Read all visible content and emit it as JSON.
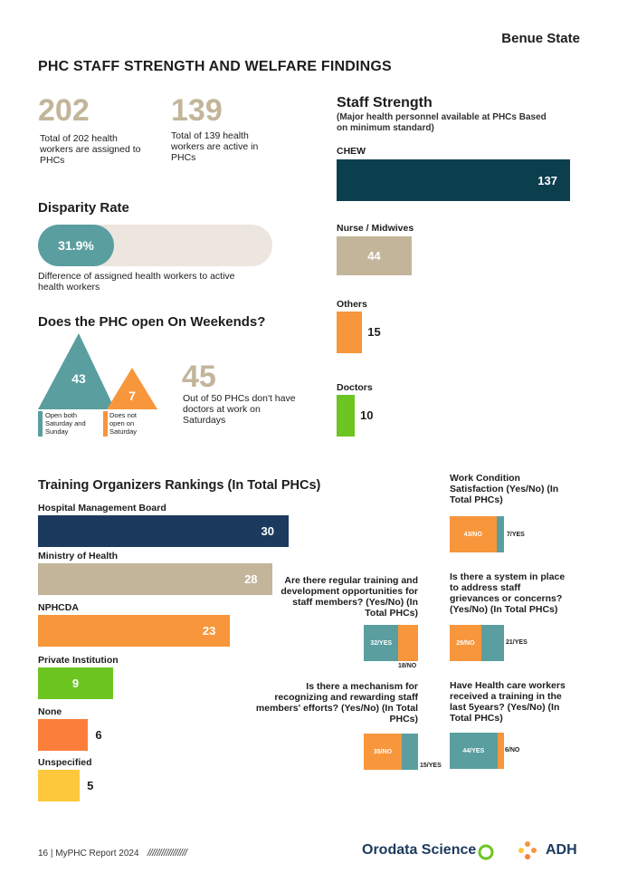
{
  "header": {
    "state": "Benue State",
    "title": "PHC STAFF STRENGTH AND WELFARE FINDINGS"
  },
  "stats": [
    {
      "value": "202",
      "text": "Total of 202 health workers are assigned to PHCs"
    },
    {
      "value": "139",
      "text": "Total of 139 health workers are active in PHCs"
    }
  ],
  "disparity": {
    "title": "Disparity Rate",
    "value": "31.9%",
    "fraction": 0.319,
    "caption": "Difference of assigned health workers to active health workers"
  },
  "weekends": {
    "title": "Does the PHC open On Weekends?",
    "open_value": "43",
    "open_label": "Open both Saturday and Sunday",
    "closed_value": "7",
    "closed_label": "Does not open on Saturday",
    "doctors_value": "45",
    "doctors_text": "Out of 50 PHCs don't have doctors at work on Saturdays"
  },
  "staff": {
    "title": "Staff Strength",
    "subtitle": "(Major health personnel available at PHCs Based on minimum standard)",
    "items": [
      {
        "label": "CHEW",
        "value": 137,
        "display": "137",
        "color": "#0c3f4e"
      },
      {
        "label": "Nurse / Midwives",
        "value": 44,
        "display": "44",
        "color": "#c2b59a"
      },
      {
        "label": "Others",
        "value": 15,
        "display": "15",
        "color": "#f7963b"
      },
      {
        "label": "Doctors",
        "value": 10,
        "display": "10",
        "color": "#6cc521"
      }
    ]
  },
  "training": {
    "title": "Training Organizers Rankings (In Total PHCs)",
    "items": [
      {
        "label": "Hospital Management Board",
        "value": 30,
        "display": "30",
        "color": "#1b3a5e"
      },
      {
        "label": "Ministry of Health",
        "value": 28,
        "display": "28",
        "color": "#c2b59a"
      },
      {
        "label": "NPHCDA",
        "value": 23,
        "display": "23",
        "color": "#f7963b"
      },
      {
        "label": "Private Institution",
        "value": 9,
        "display": "9",
        "color": "#6cc521"
      },
      {
        "label": "None",
        "value": 6,
        "display": "6",
        "color": "#fb7f3b"
      },
      {
        "label": "Unspecified",
        "value": 5,
        "display": "5",
        "color": "#fdc83c"
      }
    ]
  },
  "questions": {
    "q1": {
      "text": "Work Condition Satisfaction (Yes/No) (In Total PHCs)",
      "no": 43,
      "no_label": "43/NO",
      "yes": 7,
      "yes_label": "7/YES"
    },
    "q2": {
      "text": "Are there regular training and development opportunities for staff members? (Yes/No) (In Total PHCs)",
      "yes": 32,
      "yes_label": "32/YES",
      "no": 18,
      "no_label": "18/NO"
    },
    "q3": {
      "text": "Is there a system in place to address staff grievances or concerns? (Yes/No) (In Total PHCs)",
      "no": 29,
      "no_label": "29/NO",
      "yes": 21,
      "yes_label": "21/YES"
    },
    "q4": {
      "text": "Is there a mechanism for recognizing and rewarding staff members' efforts? (Yes/No) (In Total PHCs)",
      "no": 35,
      "no_label": "35/NO",
      "yes": 15,
      "yes_label": "15/YES"
    },
    "q5": {
      "text": "Have Health care workers received a training in the last 5years? (Yes/No) (In Total PHCs)",
      "yes": 44,
      "yes_label": "44/YES",
      "no": 6,
      "no_label": "6/NO"
    }
  },
  "footer": {
    "page": "16 | MyPHC Report 2024",
    "slashes": "/////////////////",
    "brand1": "Orodata Science",
    "brand2": "ADH"
  },
  "colors": {
    "teal": "#5a9ea0",
    "orange": "#f7963b",
    "beige": "#c2b59a"
  }
}
